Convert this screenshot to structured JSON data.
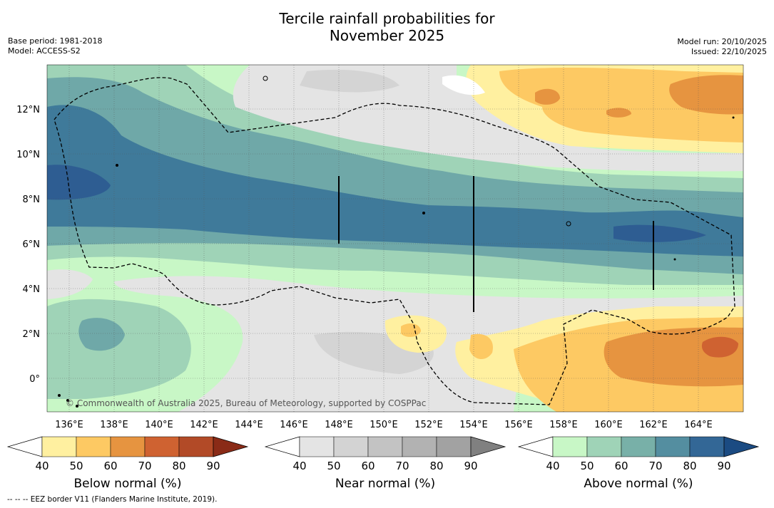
{
  "title_line1": "Tercile rainfall probabilities for",
  "title_line2": "November 2025",
  "meta_left": [
    "Base period: 1981-2018",
    "Model: ACCESS-S2"
  ],
  "meta_right": [
    "Model run: 20/10/2025",
    "Issued: 22/10/2025"
  ],
  "map": {
    "lon_ticks": [
      "136°E",
      "138°E",
      "140°E",
      "142°E",
      "144°E",
      "146°E",
      "148°E",
      "150°E",
      "152°E",
      "154°E",
      "156°E",
      "158°E",
      "160°E",
      "162°E",
      "164°E"
    ],
    "lat_ticks": [
      "12°N",
      "10°N",
      "8°N",
      "6°N",
      "4°N",
      "2°N",
      "0°"
    ],
    "copyright": "© Commonwealth of Australia 2025, Bureau of Meteorology, supported by COSPPac"
  },
  "colorbars": [
    {
      "label": "Below normal (%)",
      "ticks": [
        "40",
        "50",
        "60",
        "70",
        "80",
        "90"
      ],
      "colors": [
        "#ffffff",
        "#fff0a0",
        "#fdc963",
        "#e69440",
        "#cf6231",
        "#b24a27",
        "#8a2b17"
      ]
    },
    {
      "label": "Near normal (%)",
      "ticks": [
        "40",
        "50",
        "60",
        "70",
        "80",
        "90"
      ],
      "colors": [
        "#ffffff",
        "#e4e4e4",
        "#d3d3d3",
        "#c3c3c3",
        "#b2b2b2",
        "#a2a2a2",
        "#808080"
      ]
    },
    {
      "label": "Above normal (%)",
      "ticks": [
        "40",
        "50",
        "60",
        "70",
        "80",
        "90"
      ],
      "colors": [
        "#ffffff",
        "#c8f7c6",
        "#9fd3b7",
        "#78b0a8",
        "#548ea0",
        "#336796",
        "#1b4b82"
      ]
    }
  ],
  "footnote": "--  --  -- EEZ border V11 (Flanders Marine Institute, 2019).",
  "colors": {
    "above50": "#c8f7c6",
    "above60": "#9fd3b7",
    "above70": "#6fa8a8",
    "above80": "#3f7a9a",
    "above90": "#2e5d92",
    "below50": "#fff0a0",
    "below60": "#fdc963",
    "below70": "#e69440",
    "below80": "#cf6231",
    "near50": "#e4e4e4",
    "near60": "#d4d4d4"
  }
}
